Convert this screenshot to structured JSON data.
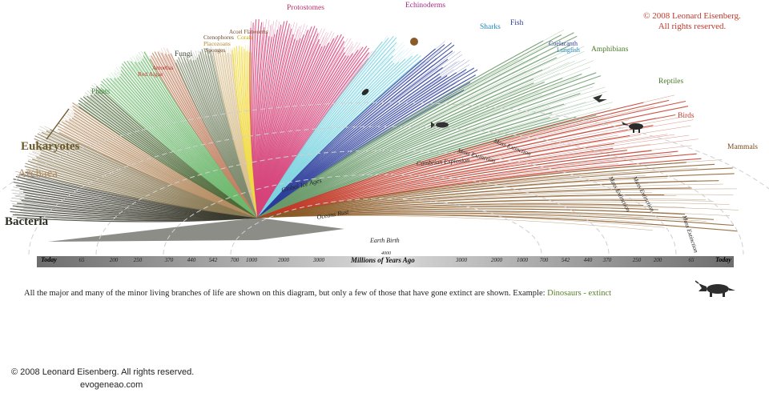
{
  "copyright_top": [
    "© 2008 Leonard Eisenberg.",
    "All rights reserved."
  ],
  "branch_labels": {
    "bacteria": "Bacteria",
    "archaea": "Archaea",
    "eukaryotes": "Eukaryotes",
    "plants": "Plants",
    "red_algae": "Red Algae",
    "amoebas": "Amoebas",
    "fungi": "Fungi",
    "ctenophores": "Ctenophores",
    "placozoans": "Placozoans",
    "sponges": "Sponges",
    "acoel_flatworms": "Acoel Flatworms",
    "corals": "Corals",
    "protostomes": "Protostomes",
    "echinoderms": "Echinoderms",
    "sharks": "Sharks",
    "fish": "Fish",
    "coelacanth": "Coelacanth",
    "lungfish": "Lungfish",
    "amphibians": "Amphibians",
    "reptiles": "Reptiles",
    "birds": "Birds",
    "mammals": "Mammals"
  },
  "event_labels": {
    "global_ice_ages": "Global Ice Ages",
    "oceans_rust": "Oceans Rust",
    "earth_birth": "Earth Birth",
    "cambrian_explosion": "Cambrian Explosion",
    "mass_extinction": "Mass Extinction",
    "mass_extinction_2": "Mass Extinction",
    "mass_extinction_3": "Mass Extinction",
    "mass_extinction_4": "Mass Extinction",
    "mass_extinction_5": "Mass Extinction"
  },
  "axis": {
    "title": "Millions of Years Ago",
    "center_value": "4000",
    "left_ticks": [
      "Today",
      "65",
      "200",
      "250",
      "370",
      "440",
      "542",
      "700",
      "1000",
      "2000",
      "3000"
    ],
    "right_ticks": [
      "3000",
      "2000",
      "1000",
      "700",
      "542",
      "440",
      "370",
      "250",
      "200",
      "65",
      "Today"
    ]
  },
  "caption": {
    "text": "All the major and many of the minor living branches of life are shown on this diagram, but only a few of those that have gone extinct are shown. Example:",
    "example": "Dinosaurs - extinct"
  },
  "copyright_bottom": "© 2008 Leonard Eisenberg. All rights reserved.",
  "website": "evogeneao.com",
  "colors": {
    "bacteria": "#3a3a2e",
    "archaea": "#b58d63",
    "eukaryotes": "#6b5a2c",
    "plants": "#6fb86f",
    "fungi": "#7c8a6c",
    "corals": "#f0d93c",
    "protostomes": "#d6447a",
    "echinoderms": "#b93a8a",
    "sharks": "#2f9ac8",
    "fish": "#2c3d9a",
    "amphibians": "#5d8a35",
    "birds": "#c23a28",
    "mammals": "#8a5a26",
    "copyright": "#c0392b"
  }
}
